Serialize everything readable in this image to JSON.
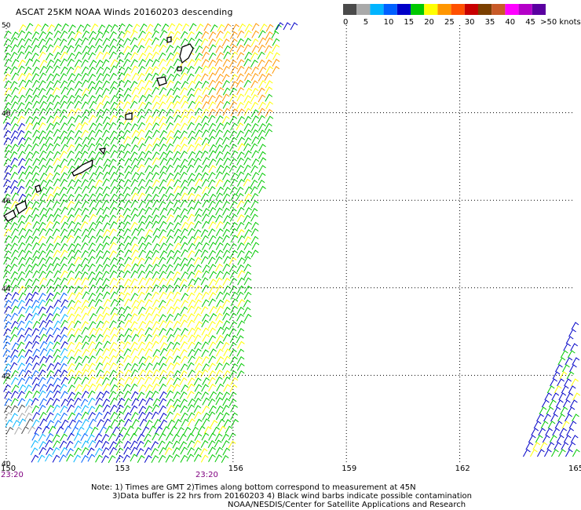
{
  "title": "ASCAT 25KM NOAA Winds 20160203 descending",
  "legend": {
    "labels": [
      "0",
      "5",
      "10",
      "15",
      "20",
      "25",
      "30",
      "35",
      "40",
      "45",
      ">50 knots"
    ],
    "colors": [
      "#4a4a4a",
      "#a9a9a9",
      "#00b4ff",
      "#0060ff",
      "#0000c8",
      "#00c800",
      "#ffff00",
      "#ff9600",
      "#ff5000",
      "#c80000",
      "#7b3f00",
      "#c85a28",
      "#ff00ff",
      "#b400c8",
      "#5a00a0"
    ]
  },
  "axes": {
    "x_ticks": [
      "150",
      "153",
      "156",
      "159",
      "162",
      "165"
    ],
    "y_ticks": [
      "40",
      "42",
      "44",
      "46",
      "48",
      "50"
    ],
    "x_range": [
      150,
      165
    ],
    "y_range": [
      40,
      50
    ]
  },
  "times": [
    "23:20",
    "23:20"
  ],
  "notes": [
    "Note: 1) Times are GMT 2)Times along bottom correspond to measurement at 45N",
    "3)Data buffer is 22 hrs from 20160203 4) Black wind barbs indicate possible contamination",
    "NOAA/NESDIS/Center for Satellite Applications and Research"
  ],
  "colors": {
    "time_label": "#800080",
    "grid": "#000000"
  }
}
